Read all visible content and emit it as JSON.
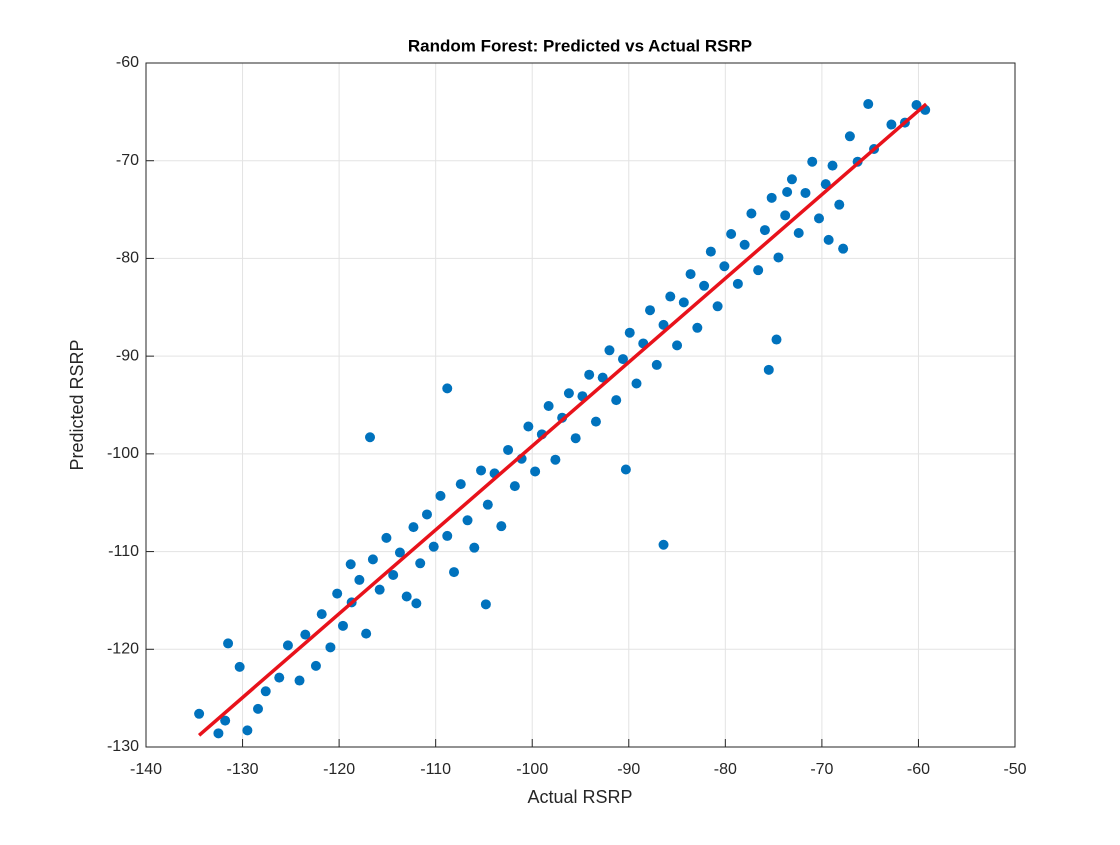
{
  "chart_data": {
    "type": "scatter",
    "title": "Random Forest: Predicted vs Actual RSRP",
    "xlabel": "Actual RSRP",
    "ylabel": "Predicted RSRP",
    "xlim": [
      -140,
      -50
    ],
    "xticks": [
      -140,
      -130,
      -120,
      -110,
      -100,
      -90,
      -80,
      -70,
      -60,
      -50
    ],
    "ylim": [
      -130,
      -60
    ],
    "yticks": [
      -130,
      -120,
      -110,
      -100,
      -90,
      -80,
      -70,
      -60
    ],
    "grid": true,
    "series": [
      {
        "style": "marker",
        "color": "#0072bd",
        "x": [
          -132.5,
          -131.8,
          -129.5,
          -128.4,
          -127.6,
          -126.2,
          -125.3,
          -124.1,
          -123.5,
          -122.4,
          -121.8,
          -120.9,
          -120.2,
          -119.6,
          -118.7,
          -117.9,
          -117.2,
          -116.5,
          -115.8,
          -115.1,
          -114.4,
          -113.7,
          -113.0,
          -112.3,
          -111.6,
          -110.9,
          -110.2,
          -109.5,
          -108.8,
          -108.1,
          -107.4,
          -106.7,
          -106.0,
          -105.3,
          -104.6,
          -103.9,
          -103.2,
          -102.5,
          -101.8,
          -101.1,
          -100.4,
          -99.7,
          -99.0,
          -98.3,
          -97.6,
          -96.9,
          -96.2,
          -95.5,
          -94.8,
          -94.1,
          -93.4,
          -92.7,
          -92.0,
          -91.3,
          -90.6,
          -89.9,
          -89.2,
          -88.5,
          -87.8,
          -87.1,
          -86.4,
          -85.7,
          -85.0,
          -84.3,
          -83.6,
          -82.9,
          -82.2,
          -81.5,
          -80.8,
          -80.1,
          -79.4,
          -78.7,
          -78.0,
          -77.3,
          -76.6,
          -75.9,
          -75.2,
          -74.5,
          -73.8,
          -73.1,
          -72.4,
          -71.7,
          -71.0,
          -70.3,
          -69.6,
          -68.9,
          -68.2,
          -67.1,
          -66.3,
          -64.6,
          -62.8,
          -61.4,
          -116.8,
          -86.4,
          -75.5,
          -134.5,
          -131.5,
          -130.3,
          -60.2,
          -65.2,
          -59.3,
          -67.8,
          -69.3,
          -73.6,
          -74.7,
          -90.3,
          -108.8,
          -104.8,
          -118.8,
          -112.0
        ],
        "values": [
          -128.6,
          -127.3,
          -128.3,
          -126.1,
          -124.3,
          -122.9,
          -119.6,
          -123.2,
          -118.5,
          -121.7,
          -116.4,
          -119.8,
          -114.3,
          -117.6,
          -115.2,
          -112.9,
          -118.4,
          -110.8,
          -113.9,
          -108.6,
          -112.4,
          -110.1,
          -114.6,
          -107.5,
          -111.2,
          -106.2,
          -109.5,
          -104.3,
          -108.4,
          -112.1,
          -103.1,
          -106.8,
          -109.6,
          -101.7,
          -105.2,
          -102.0,
          -107.4,
          -99.6,
          -103.3,
          -100.5,
          -97.2,
          -101.8,
          -98.0,
          -95.1,
          -100.6,
          -96.3,
          -93.8,
          -98.4,
          -94.1,
          -91.9,
          -96.7,
          -92.2,
          -89.4,
          -94.5,
          -90.3,
          -87.6,
          -92.8,
          -88.7,
          -85.3,
          -90.9,
          -86.8,
          -83.9,
          -88.9,
          -84.5,
          -81.6,
          -87.1,
          -82.8,
          -79.3,
          -84.9,
          -80.8,
          -77.5,
          -82.6,
          -78.6,
          -75.4,
          -81.2,
          -77.1,
          -73.8,
          -79.9,
          -75.6,
          -71.9,
          -77.4,
          -73.3,
          -70.1,
          -75.9,
          -72.4,
          -70.5,
          -74.5,
          -67.5,
          -70.1,
          -68.8,
          -66.3,
          -66.1,
          -98.3,
          -109.3,
          -91.4,
          -126.6,
          -119.4,
          -121.8,
          -64.3,
          -64.2,
          -64.8,
          -79.0,
          -78.1,
          -73.2,
          -88.3,
          -101.6,
          -93.3,
          -115.4,
          -111.3,
          -115.3
        ]
      },
      {
        "style": "line",
        "color": "#e8121b",
        "x": [
          -134.5,
          -59.2
        ],
        "values": [
          -128.8,
          -64.2
        ]
      }
    ]
  }
}
